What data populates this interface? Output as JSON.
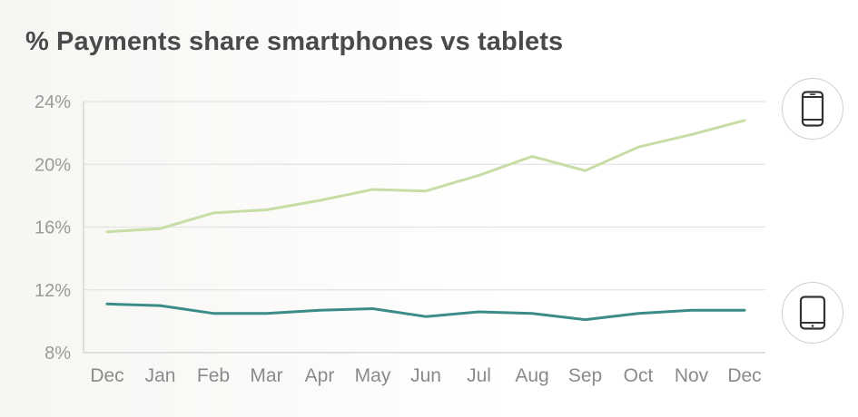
{
  "title": "% Payments share smartphones vs tablets",
  "chart_data": {
    "type": "line",
    "title": "% Payments share smartphones vs tablets",
    "xlabel": "",
    "ylabel": "",
    "categories": [
      "Dec",
      "Jan",
      "Feb",
      "Mar",
      "Apr",
      "May",
      "Jun",
      "Jul",
      "Aug",
      "Sep",
      "Oct",
      "Nov",
      "Dec"
    ],
    "ylim": [
      8,
      24
    ],
    "yticks": [
      8,
      12,
      16,
      20,
      24
    ],
    "ytick_labels": [
      "8%",
      "12%",
      "16%",
      "20%",
      "24%"
    ],
    "grid": true,
    "legend": "icons at right end of lines",
    "series": [
      {
        "key": "smartphones",
        "icon": "smartphone-icon",
        "color": "#c6dea6",
        "values": [
          15.7,
          15.9,
          16.9,
          17.1,
          17.7,
          18.4,
          18.3,
          19.3,
          20.5,
          19.6,
          21.1,
          21.9,
          22.8
        ]
      },
      {
        "key": "tablets",
        "icon": "tablet-icon",
        "color": "#3b8b87",
        "values": [
          11.1,
          11.0,
          10.5,
          10.5,
          10.7,
          10.8,
          10.3,
          10.6,
          10.5,
          10.1,
          10.5,
          10.7,
          10.7
        ]
      }
    ]
  }
}
